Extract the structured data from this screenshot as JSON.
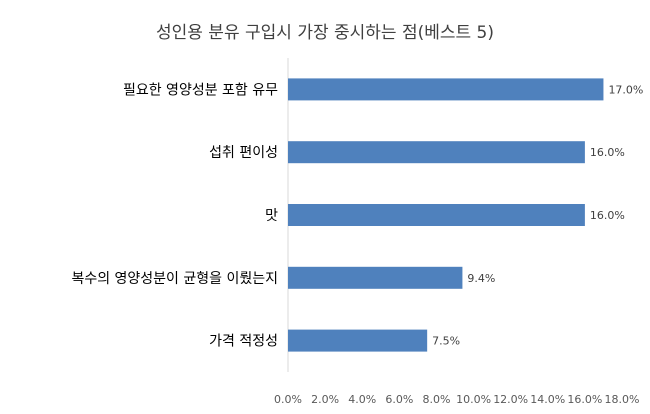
{
  "chart_data": {
    "type": "bar",
    "orientation": "horizontal",
    "title": "성인용 분유 구입시 가장 중시하는 점(베스트 5)",
    "categories": [
      "필요한 영양성분 포함 유무",
      "섭취 편이성",
      "맛",
      "복수의 영양성분이 균형을 이뤘는지",
      "가격 적정성"
    ],
    "values": [
      17.0,
      16.0,
      16.0,
      9.4,
      7.5
    ],
    "data_labels": [
      "17.0%",
      "16.0%",
      "16.0%",
      "9.4%",
      "7.5%"
    ],
    "xlim": [
      0,
      18
    ],
    "xticks": [
      0,
      2,
      4,
      6,
      8,
      10,
      12,
      14,
      16,
      18
    ],
    "xtick_labels": [
      "0.0%",
      "2.0%",
      "4.0%",
      "6.0%",
      "8.0%",
      "10.0%",
      "12.0%",
      "14.0%",
      "16.0%",
      "18.0%"
    ],
    "xlabel": "",
    "ylabel": "",
    "grid": false,
    "legend": "none",
    "bar_color": "#4F81BD"
  }
}
